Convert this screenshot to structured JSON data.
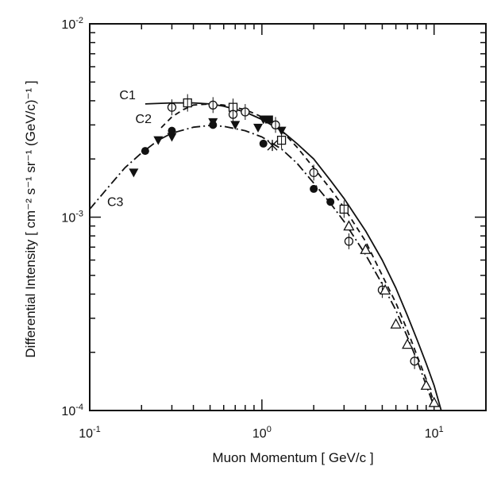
{
  "chart_data": {
    "type": "scatter",
    "x_scale": "log",
    "y_scale": "log",
    "xlim": [
      0.1,
      20
    ],
    "ylim": [
      0.0001,
      0.01
    ],
    "xlabel": "Muon Momentum  [ GeV/c ]",
    "ylabel": "Differential Intensity  [ cm⁻² s⁻¹ sr⁻¹ (GeV/c)⁻¹ ]",
    "x_ticks": [
      {
        "value": 0.1,
        "base": "10",
        "exp": "-1"
      },
      {
        "value": 1,
        "base": "10",
        "exp": "0"
      },
      {
        "value": 10,
        "base": "10",
        "exp": "1"
      }
    ],
    "y_ticks": [
      {
        "value": 0.0001,
        "base": "10",
        "exp": "-4"
      },
      {
        "value": 0.001,
        "base": "10",
        "exp": "-3"
      },
      {
        "value": 0.01,
        "base": "10",
        "exp": "-2"
      }
    ],
    "curves": [
      {
        "label": "C1",
        "style": "solid",
        "x": [
          0.21,
          0.3,
          0.4,
          0.5,
          0.6,
          0.8,
          1.0,
          1.3,
          1.6,
          2.0,
          2.5,
          3.0,
          4.0,
          5.0,
          6.0,
          7.0,
          8.0,
          9.0,
          10.0,
          11.0
        ],
        "y": [
          0.00385,
          0.0039,
          0.0039,
          0.00385,
          0.00375,
          0.0035,
          0.0032,
          0.0028,
          0.0024,
          0.002,
          0.00155,
          0.00125,
          0.00085,
          0.0006,
          0.00043,
          0.00031,
          0.00023,
          0.000175,
          0.000135,
          0.0001
        ]
      },
      {
        "label": "C2",
        "style": "dashed",
        "x": [
          0.26,
          0.3,
          0.35,
          0.4,
          0.5,
          0.6,
          0.8,
          1.0,
          1.3,
          1.6,
          2.0,
          2.5,
          3.0,
          4.0,
          5.0,
          6.0,
          7.0,
          8.0,
          9.0,
          10.0
        ],
        "y": [
          0.0029,
          0.0033,
          0.0036,
          0.0038,
          0.00385,
          0.0038,
          0.0036,
          0.0033,
          0.0028,
          0.0023,
          0.0018,
          0.0014,
          0.00112,
          0.00075,
          0.0005,
          0.00036,
          0.00026,
          0.00019,
          0.000145,
          0.00011
        ]
      },
      {
        "label": "C3",
        "style": "dashdot",
        "x": [
          0.1,
          0.13,
          0.16,
          0.2,
          0.25,
          0.3,
          0.4,
          0.5,
          0.6,
          0.8,
          1.0,
          1.3,
          1.6,
          2.0,
          2.5,
          3.0,
          4.0,
          5.0,
          6.0,
          7.0,
          8.0,
          9.0,
          10.0
        ],
        "y": [
          0.0011,
          0.00145,
          0.0018,
          0.00215,
          0.0025,
          0.00272,
          0.00292,
          0.00298,
          0.00295,
          0.0028,
          0.0026,
          0.00225,
          0.0019,
          0.0015,
          0.00118,
          0.00095,
          0.00064,
          0.00045,
          0.00033,
          0.00024,
          0.00018,
          0.000135,
          0.000105
        ]
      }
    ],
    "points": [
      {
        "marker": "filled-triangle-down",
        "x": [
          0.18,
          0.25,
          0.3,
          0.52,
          0.7,
          0.95,
          1.02,
          1.3
        ],
        "y": [
          0.0017,
          0.0025,
          0.0026,
          0.0031,
          0.003,
          0.0029,
          0.0032,
          0.0028
        ]
      },
      {
        "marker": "filled-circle",
        "x": [
          0.21,
          0.3,
          0.52,
          1.02,
          2.0,
          2.5
        ],
        "y": [
          0.0022,
          0.0028,
          0.003,
          0.0024,
          0.0014,
          0.0012
        ]
      },
      {
        "marker": "filled-square",
        "x": [
          1.1
        ],
        "y": [
          0.0032
        ]
      },
      {
        "marker": "open-square",
        "x": [
          0.37,
          0.68,
          1.3,
          3.0
        ],
        "y": [
          0.0039,
          0.0037,
          0.0025,
          0.0011
        ]
      },
      {
        "marker": "open-circle",
        "x": [
          0.3,
          0.52,
          0.68,
          0.8,
          1.2,
          2.0,
          3.2,
          5.0,
          7.7
        ],
        "y": [
          0.0037,
          0.0038,
          0.0034,
          0.0035,
          0.003,
          0.0017,
          0.00075,
          0.00042,
          0.00018
        ]
      },
      {
        "marker": "open-triangle-up",
        "x": [
          3.2,
          4.0,
          5.2,
          6.0,
          7.0,
          9.0,
          10.0
        ],
        "y": [
          0.0009,
          0.00068,
          0.00042,
          0.00028,
          0.00022,
          0.000135,
          0.00011
        ]
      },
      {
        "marker": "asterisk",
        "x": [
          1.15
        ],
        "y": [
          0.00235
        ]
      }
    ]
  }
}
